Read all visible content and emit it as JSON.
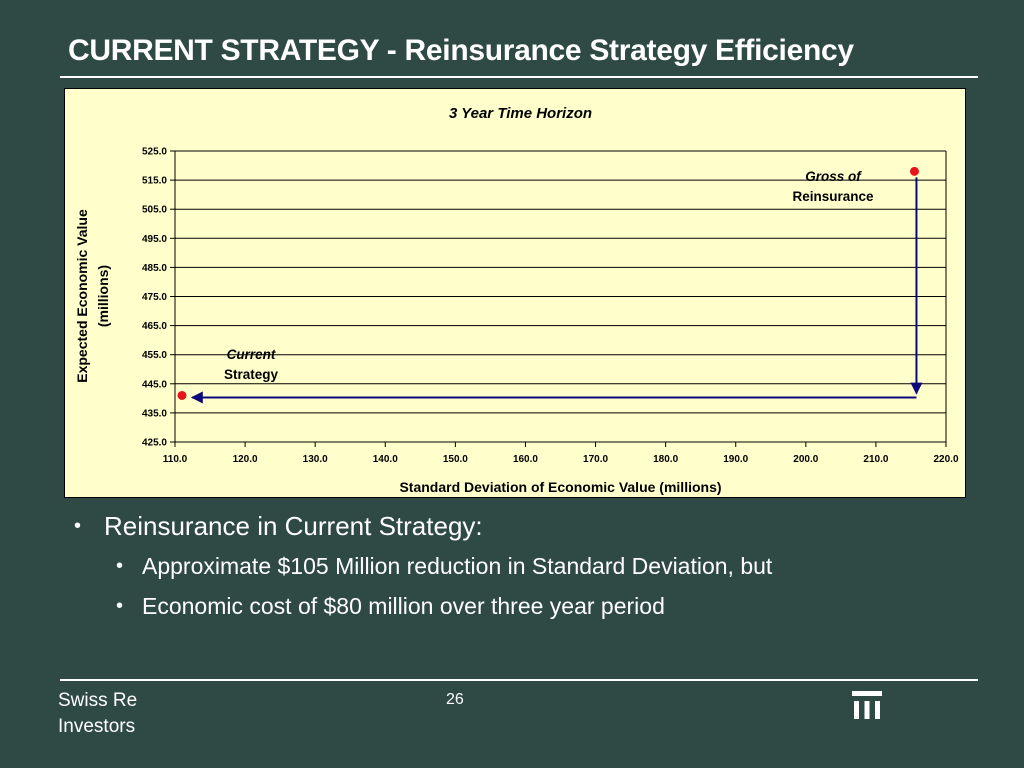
{
  "slide": {
    "title": "CURRENT STRATEGY - Reinsurance Strategy Efficiency"
  },
  "chart_data": {
    "type": "scatter",
    "title": "3 Year Time Horizon",
    "xlabel": "Standard Deviation of Economic Value (millions)",
    "ylabel_lines": [
      "Expected Economic Value",
      "(millions)"
    ],
    "xlim": [
      110.0,
      220.0
    ],
    "ylim": [
      425.0,
      525.0
    ],
    "x_ticks": [
      "110.0",
      "120.0",
      "130.0",
      "140.0",
      "150.0",
      "160.0",
      "170.0",
      "180.0",
      "190.0",
      "200.0",
      "210.0",
      "220.0"
    ],
    "y_ticks": [
      "425.0",
      "435.0",
      "445.0",
      "455.0",
      "465.0",
      "475.0",
      "485.0",
      "495.0",
      "505.0",
      "515.0",
      "525.0"
    ],
    "grid": "horizontal",
    "points": [
      {
        "label_lines": [
          "Gross of",
          "Reinsurance"
        ],
        "x": 215.5,
        "y": 518.0,
        "color": "#e8141b"
      },
      {
        "label_lines": [
          "Current",
          "Strategy"
        ],
        "x": 111.0,
        "y": 441.0,
        "color": "#e8141b"
      }
    ],
    "arrow_color": "#0a0a7a"
  },
  "bullets": {
    "main": "Reinsurance in Current Strategy:",
    "subs": [
      "Approximate $105 Million reduction in Standard Deviation, but",
      "Economic cost of $80 million over three year period"
    ]
  },
  "footer": {
    "company_line1": "Swiss Re",
    "company_line2": "Investors",
    "page_number": "26"
  }
}
